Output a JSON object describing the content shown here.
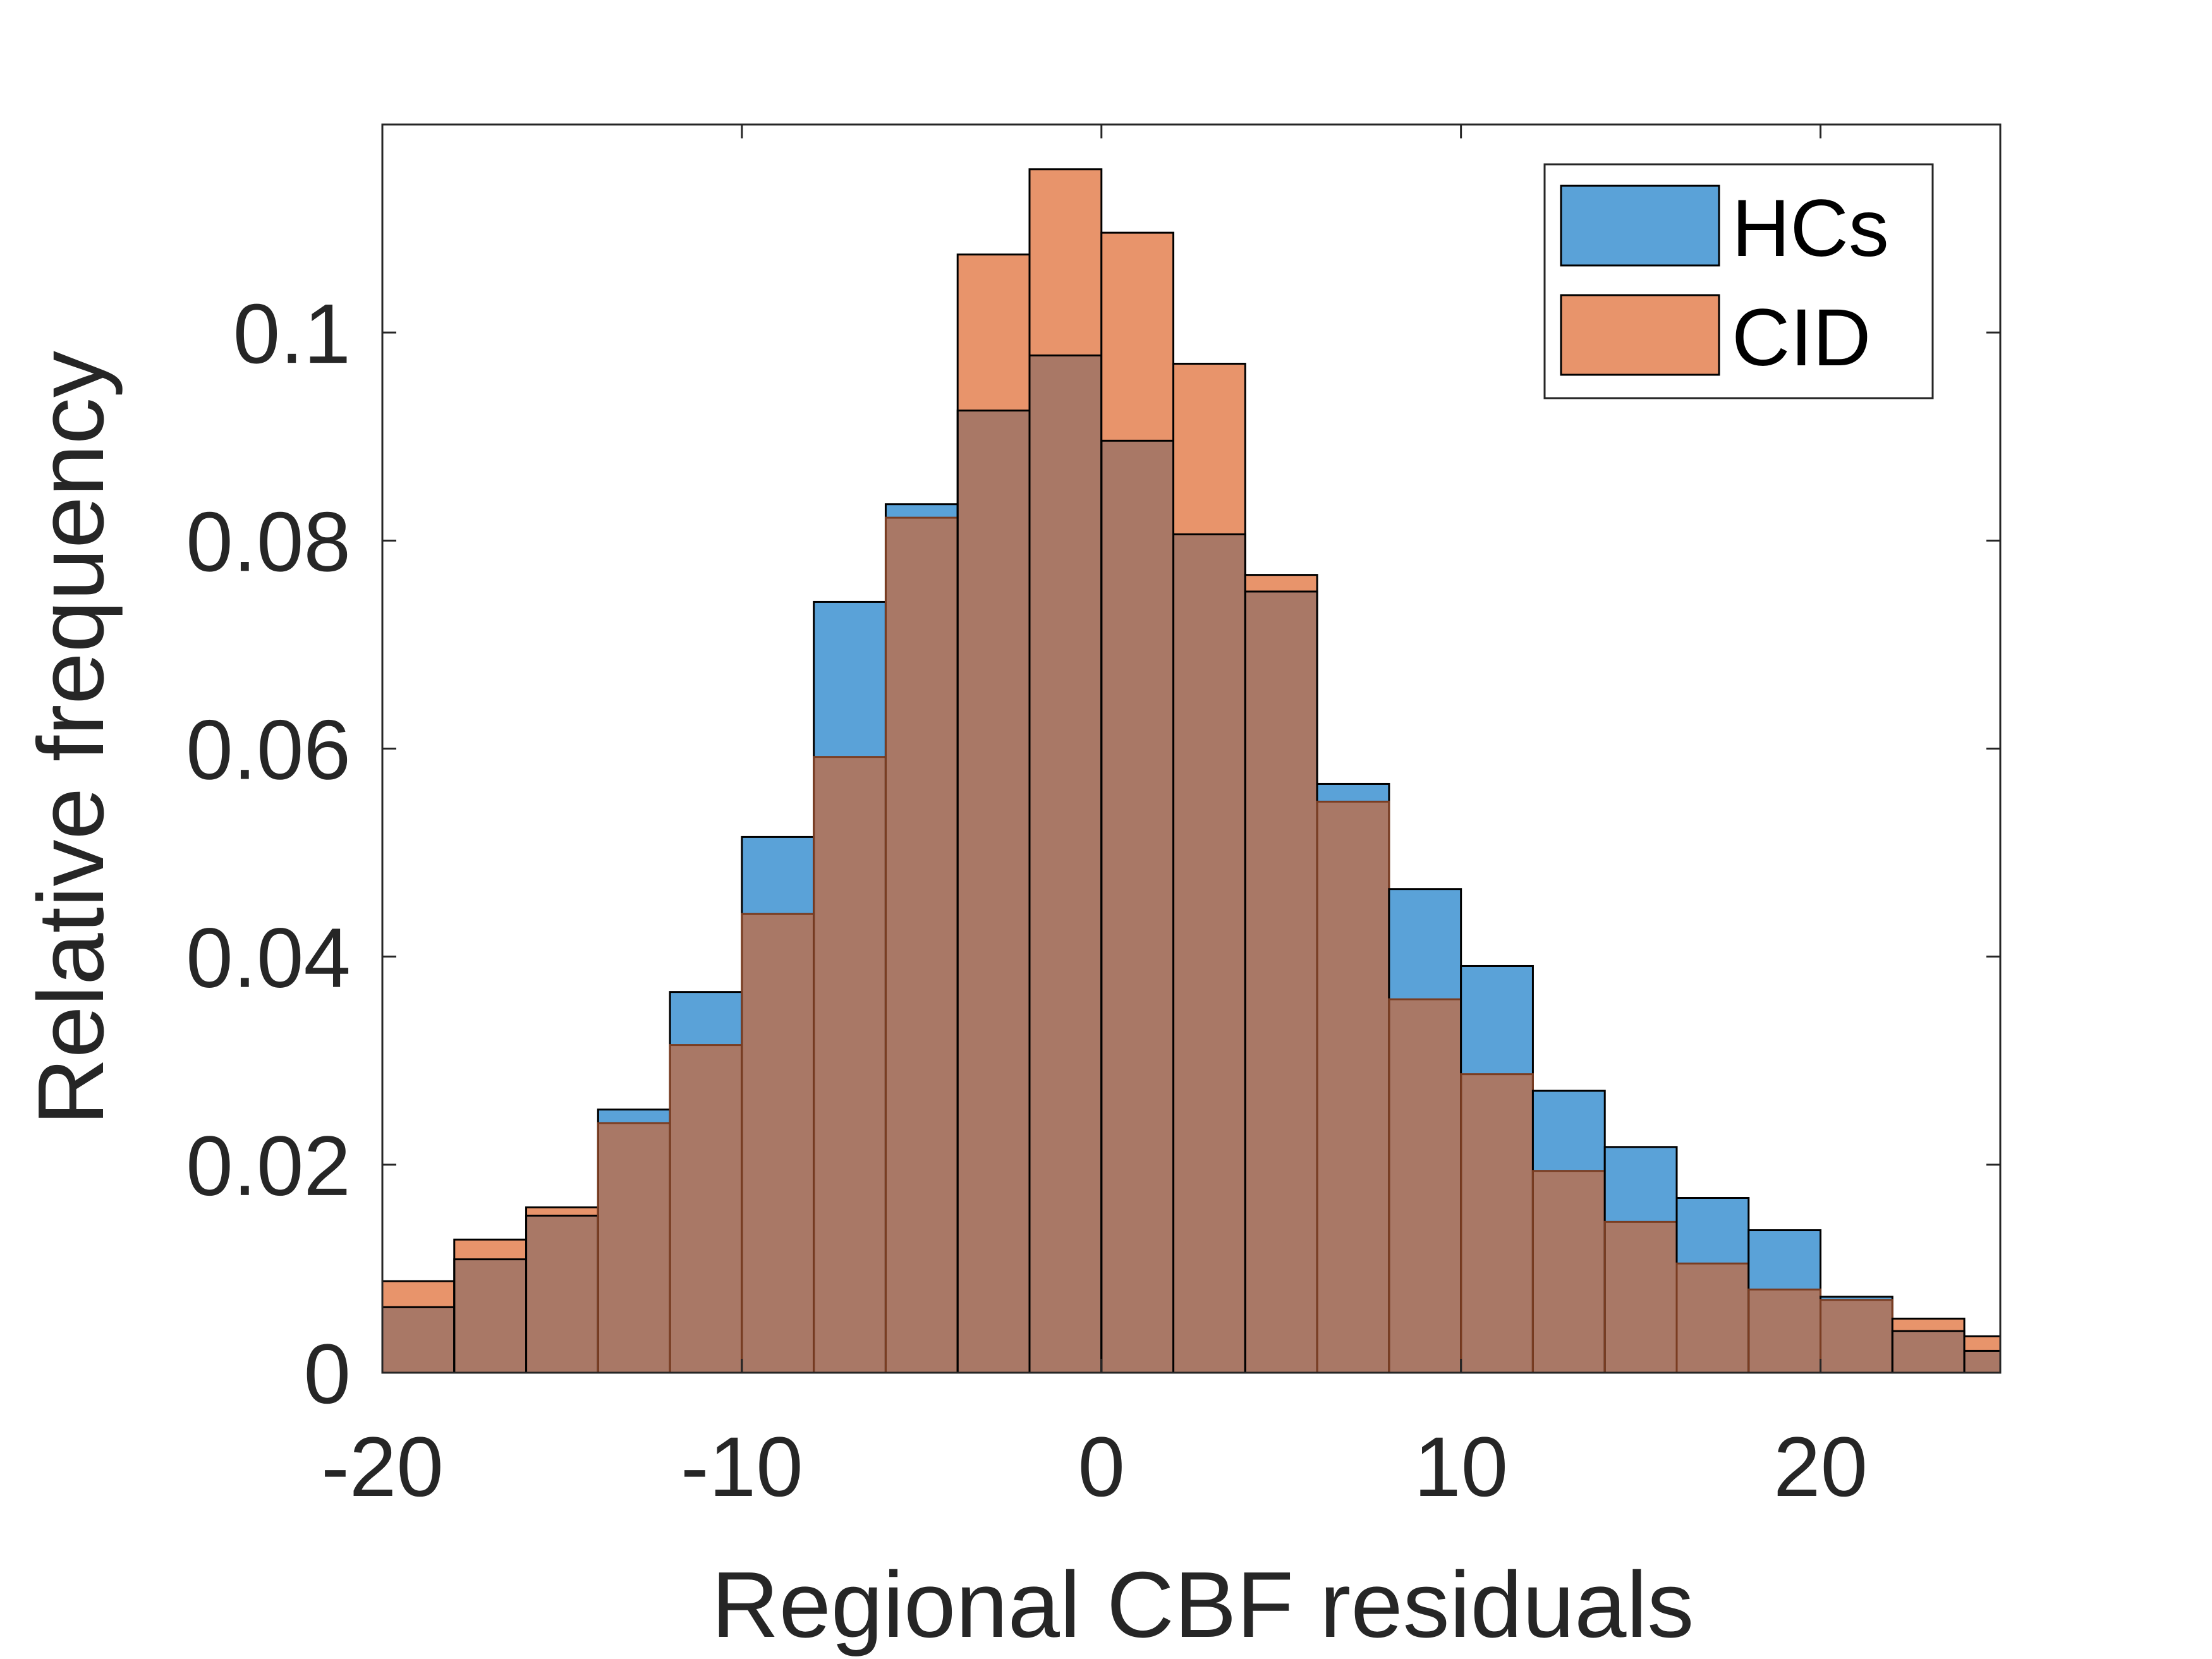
{
  "chart_data": {
    "type": "bar",
    "xlabel": "Regional CBF residuals",
    "ylabel": "Relative frequency",
    "xlim": [
      -20,
      25
    ],
    "ylim": [
      0,
      0.12
    ],
    "bin_width": 2,
    "bin_edges": [
      -20,
      -18,
      -16,
      -14,
      -12,
      -10,
      -8,
      -6,
      -4,
      -2,
      0,
      2,
      4,
      6,
      8,
      10,
      12,
      14,
      16,
      18,
      20,
      22,
      24,
      25
    ],
    "x_ticks": [
      -20,
      -10,
      0,
      10,
      20
    ],
    "x_tick_labels": [
      "-20",
      "-10",
      "0",
      "10",
      "20"
    ],
    "y_ticks": [
      0,
      0.02,
      0.04,
      0.06,
      0.08,
      0.1
    ],
    "y_tick_labels": [
      "0",
      "0.02",
      "0.04",
      "0.06",
      "0.08",
      "0.1"
    ],
    "grid": false,
    "legend_position": "top-right",
    "series": [
      {
        "name": "HCs",
        "color": "#5aa2d8",
        "values": [
          0.0063,
          0.0109,
          0.0151,
          0.0253,
          0.0366,
          0.0515,
          0.0741,
          0.0835,
          0.0925,
          0.0978,
          0.0896,
          0.0806,
          0.0751,
          0.0566,
          0.0465,
          0.0391,
          0.0271,
          0.0217,
          0.0168,
          0.0137,
          0.0073,
          0.004,
          0.0021
        ]
      },
      {
        "name": "CID",
        "color": "#e8946b",
        "values": [
          0.0088,
          0.0128,
          0.0159,
          0.024,
          0.0315,
          0.0441,
          0.0592,
          0.0822,
          0.1075,
          0.1157,
          0.1096,
          0.097,
          0.0767,
          0.0549,
          0.0359,
          0.0287,
          0.0194,
          0.0145,
          0.0105,
          0.008,
          0.007,
          0.0052,
          0.0035
        ]
      }
    ],
    "overlap_color": "#a97866"
  }
}
